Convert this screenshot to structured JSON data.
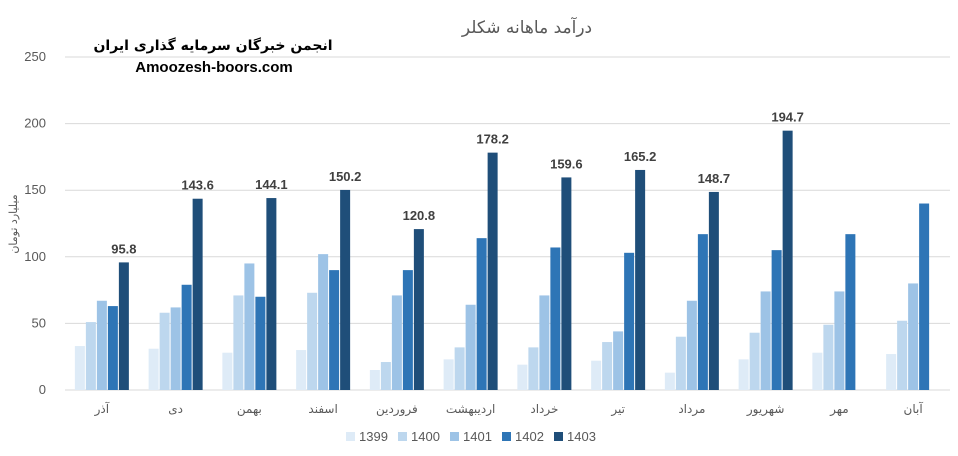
{
  "watermark": {
    "line1": "انجمن خبرگان سرمایه گذاری ایران",
    "line2": "Amoozesh-boors.com"
  },
  "chart_data": {
    "type": "bar",
    "title": "درآمد ماهانه شکلر",
    "ylabel": "میلیارد تومان",
    "xlabel": "",
    "ylim": [
      0,
      250
    ],
    "yticks": [
      0,
      50,
      100,
      150,
      200,
      250
    ],
    "grid": true,
    "legend_position": "bottom",
    "categories": [
      "آذر",
      "دی",
      "بهمن",
      "اسفند",
      "فروردین",
      "اردیبهشت",
      "خرداد",
      "تیر",
      "مرداد",
      "شهریور",
      "مهر",
      "آبان"
    ],
    "series": [
      {
        "name": "1399",
        "color": "#deebf7",
        "values": [
          33,
          31,
          28,
          30,
          15,
          23,
          19,
          22,
          13,
          23,
          28,
          27
        ]
      },
      {
        "name": "1400",
        "color": "#bdd7ee",
        "values": [
          51,
          58,
          71,
          73,
          21,
          32,
          32,
          36,
          40,
          43,
          49,
          52
        ]
      },
      {
        "name": "1401",
        "color": "#9dc3e6",
        "values": [
          67,
          62,
          95,
          102,
          71,
          64,
          71,
          44,
          67,
          74,
          74,
          80
        ]
      },
      {
        "name": "1402",
        "color": "#2e75b6",
        "values": [
          63,
          79,
          70,
          90,
          90,
          114,
          107,
          103,
          117,
          105,
          117,
          140
        ]
      },
      {
        "name": "1403",
        "color": "#1f4e79",
        "values": [
          95.8,
          143.6,
          144.1,
          150.2,
          120.8,
          178.2,
          159.6,
          165.2,
          148.7,
          194.7,
          null,
          null
        ]
      }
    ],
    "data_labels": {
      "series": "1403",
      "labels": [
        "95.8",
        "143.6",
        "144.1",
        "150.2",
        "120.8",
        "178.2",
        "159.6",
        "165.2",
        "148.7",
        "194.7",
        "",
        ""
      ]
    }
  }
}
